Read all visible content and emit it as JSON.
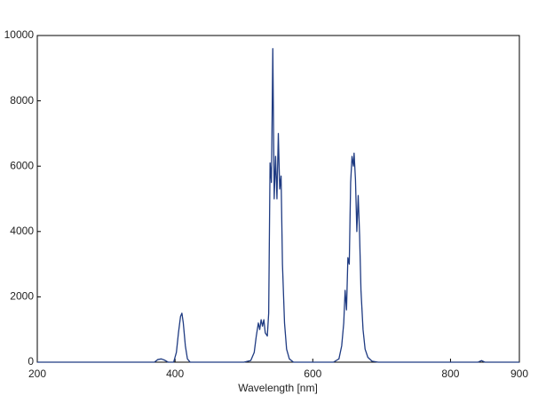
{
  "chart_data": {
    "type": "line",
    "x_label": "Wavelength [nm]",
    "x": [
      200,
      370,
      375,
      380,
      385,
      390,
      398,
      402,
      405,
      408,
      410,
      412,
      415,
      418,
      422,
      500,
      510,
      515,
      518,
      521,
      523,
      525,
      527,
      529,
      531,
      534,
      536,
      538,
      540,
      542,
      544,
      546,
      548,
      550,
      552,
      554,
      556,
      559,
      562,
      566,
      572,
      630,
      638,
      642,
      645,
      647,
      649,
      651,
      653,
      655,
      657,
      659,
      660,
      662,
      664,
      666,
      668,
      670,
      673,
      676,
      680,
      686,
      695,
      840,
      845,
      850,
      900
    ],
    "values": [
      0,
      0,
      80,
      100,
      60,
      0,
      0,
      300,
      900,
      1400,
      1500,
      1200,
      500,
      100,
      0,
      0,
      50,
      300,
      800,
      1200,
      1000,
      1300,
      1100,
      1300,
      900,
      800,
      1500,
      6100,
      5500,
      9600,
      5000,
      6300,
      5000,
      7000,
      5300,
      5700,
      3000,
      1200,
      400,
      100,
      0,
      0,
      100,
      500,
      1200,
      2200,
      1600,
      3200,
      3000,
      5500,
      6300,
      6000,
      6400,
      5600,
      4000,
      5100,
      3900,
      2200,
      1000,
      400,
      150,
      30,
      0,
      0,
      50,
      0,
      0
    ],
    "color": "#1f3b82",
    "xlim": [
      200,
      900
    ],
    "xticks": [
      200,
      400,
      600,
      800,
      900
    ],
    "ylim": [
      0,
      10000
    ],
    "yticks": [
      0,
      2000,
      4000,
      6000,
      8000,
      10000
    ],
    "grid": false
  }
}
